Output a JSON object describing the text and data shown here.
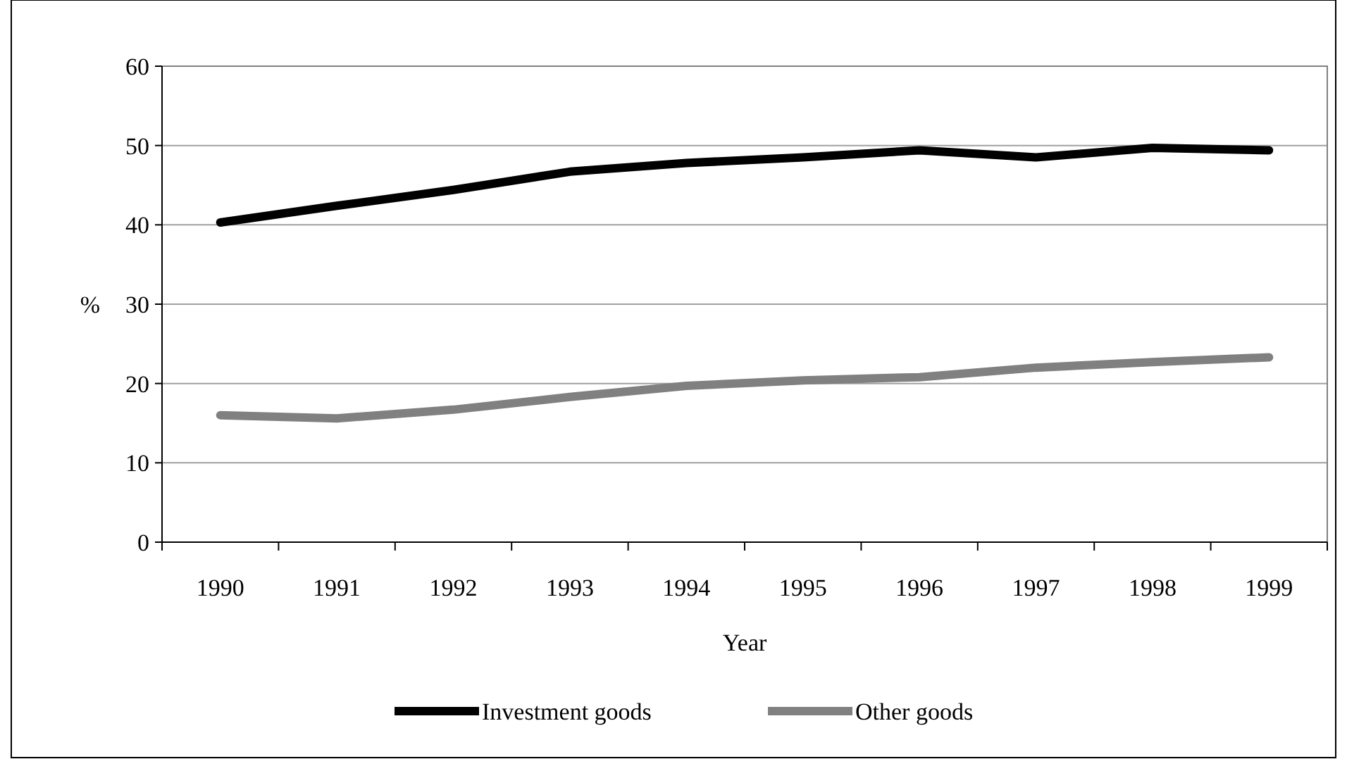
{
  "chart_data": {
    "type": "line",
    "xlabel": "Year",
    "ylabel": "%",
    "categories": [
      "1990",
      "1991",
      "1992",
      "1993",
      "1994",
      "1995",
      "1996",
      "1997",
      "1998",
      "1999"
    ],
    "series": [
      {
        "name": "Investment goods",
        "color": "#000000",
        "values": [
          40.3,
          42.4,
          44.4,
          46.7,
          47.8,
          48.5,
          49.4,
          48.5,
          49.7,
          49.4
        ]
      },
      {
        "name": "Other goods",
        "color": "#808080",
        "values": [
          16.0,
          15.6,
          16.7,
          18.3,
          19.7,
          20.4,
          20.8,
          22.0,
          22.7,
          23.3
        ]
      }
    ],
    "ylim": [
      0,
      60
    ],
    "yticks": [
      0,
      10,
      20,
      30,
      40,
      50,
      60
    ],
    "grid": "y",
    "legend": "bottom",
    "marker": "none",
    "line_style": "solid"
  }
}
